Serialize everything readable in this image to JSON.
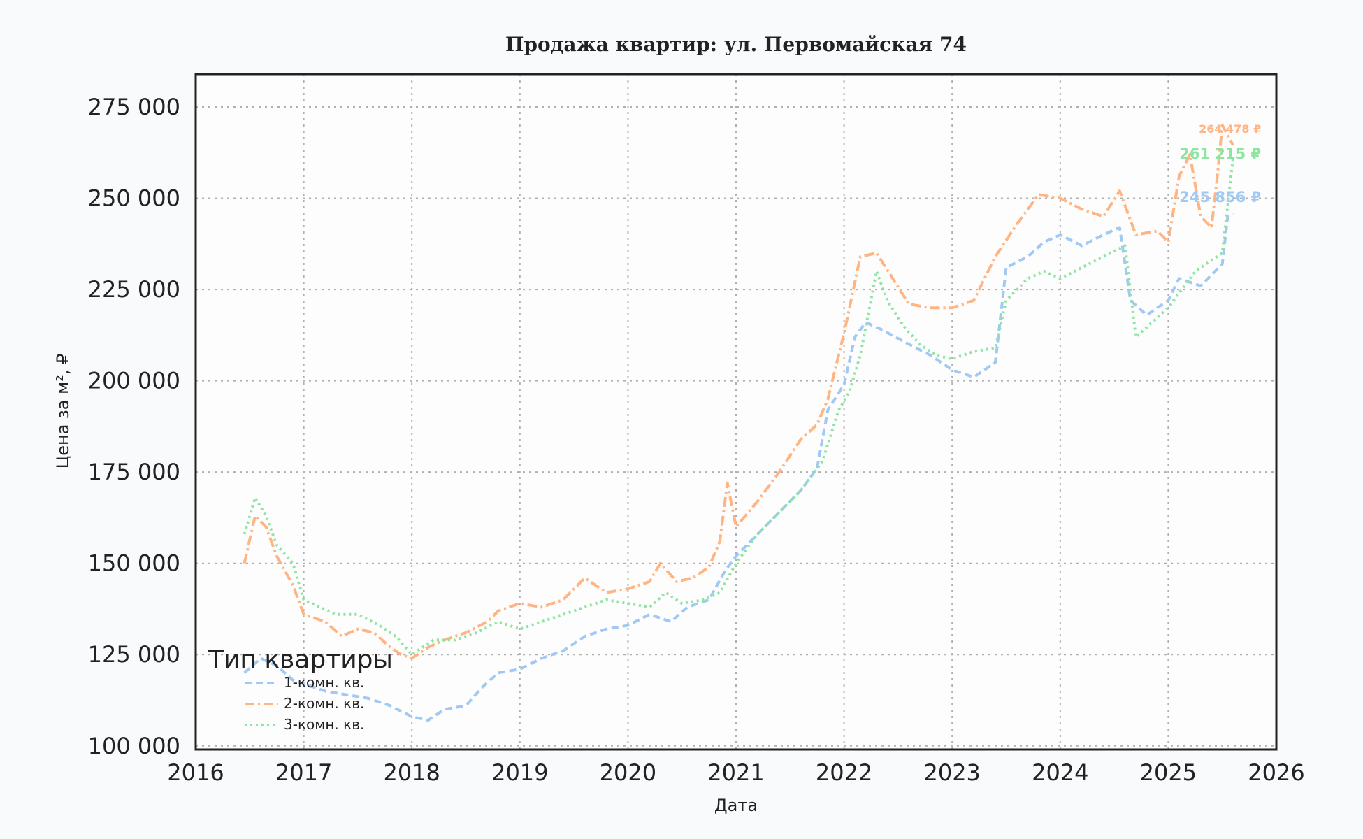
{
  "chart_data": {
    "type": "line",
    "title": "Продажа квартир: ул. Первомайская 74",
    "xlabel": "Дата",
    "ylabel": "Цена за м², ₽",
    "xlim": [
      2016,
      2026
    ],
    "ylim": [
      99000,
      284000
    ],
    "x_ticks": [
      "2016",
      "2017",
      "2018",
      "2019",
      "2020",
      "2021",
      "2022",
      "2023",
      "2024",
      "2025",
      "2026"
    ],
    "y_ticks": [
      100000,
      125000,
      150000,
      175000,
      200000,
      225000,
      250000,
      275000
    ],
    "y_tick_labels": [
      "100 000",
      "125 000",
      "150 000",
      "175 000",
      "200 000",
      "225 000",
      "250 000",
      "275 000"
    ],
    "grid": true,
    "legend": {
      "title": "Тип квартиры",
      "placement": "lower-left"
    },
    "series": [
      {
        "name": "1-комн. кв.",
        "color": "#a1c9f4",
        "dash": "10 6",
        "end_label": "245 856 ₽",
        "x": [
          2016.45,
          2016.6,
          2016.75,
          2016.9,
          2017.0,
          2017.2,
          2017.4,
          2017.6,
          2017.8,
          2018.0,
          2018.15,
          2018.3,
          2018.5,
          2018.65,
          2018.8,
          2019.0,
          2019.2,
          2019.4,
          2019.6,
          2019.8,
          2020.0,
          2020.2,
          2020.4,
          2020.55,
          2020.75,
          2020.9,
          2021.0,
          2021.2,
          2021.4,
          2021.6,
          2021.75,
          2021.85,
          2022.0,
          2022.1,
          2022.2,
          2022.35,
          2022.6,
          2022.8,
          2023.0,
          2023.2,
          2023.4,
          2023.5,
          2023.7,
          2023.85,
          2024.0,
          2024.2,
          2024.4,
          2024.55,
          2024.65,
          2024.8,
          2025.0,
          2025.1,
          2025.3,
          2025.5,
          2025.55,
          2025.6
        ],
        "y": [
          120000,
          124000,
          122000,
          118000,
          117000,
          115000,
          114000,
          113000,
          111000,
          108000,
          107000,
          110000,
          111000,
          116000,
          120000,
          121000,
          124000,
          126000,
          130000,
          132000,
          133000,
          136000,
          134000,
          138000,
          140000,
          148000,
          152000,
          158000,
          164000,
          170000,
          176000,
          192000,
          199000,
          212000,
          216000,
          214000,
          210000,
          207000,
          203000,
          201000,
          205000,
          231000,
          234000,
          238000,
          240000,
          237000,
          240000,
          242000,
          222000,
          218000,
          222000,
          228000,
          226000,
          232000,
          245000,
          245856
        ]
      },
      {
        "name": "2-комн. кв.",
        "color": "#ffb482",
        "dash": "14 5 3 5",
        "end_label": "264 478 ₽",
        "x": [
          2016.45,
          2016.55,
          2016.65,
          2016.75,
          2016.9,
          2017.0,
          2017.2,
          2017.35,
          2017.5,
          2017.65,
          2017.8,
          2017.9,
          2018.0,
          2018.15,
          2018.3,
          2018.5,
          2018.7,
          2018.8,
          2019.0,
          2019.2,
          2019.4,
          2019.6,
          2019.8,
          2020.0,
          2020.2,
          2020.3,
          2020.45,
          2020.6,
          2020.75,
          2020.85,
          2020.92,
          2021.0,
          2021.2,
          2021.4,
          2021.6,
          2021.75,
          2021.85,
          2022.0,
          2022.15,
          2022.3,
          2022.45,
          2022.6,
          2022.8,
          2023.0,
          2023.2,
          2023.4,
          2023.6,
          2023.8,
          2024.0,
          2024.2,
          2024.4,
          2024.55,
          2024.7,
          2024.9,
          2025.0,
          2025.1,
          2025.2,
          2025.3,
          2025.4,
          2025.45,
          2025.5,
          2025.6
        ],
        "y": [
          150000,
          163000,
          160000,
          152000,
          144000,
          136000,
          134000,
          130000,
          132000,
          131000,
          127000,
          125000,
          124000,
          127000,
          129000,
          131000,
          134000,
          137000,
          139000,
          138000,
          140000,
          146000,
          142000,
          143000,
          145000,
          150000,
          145000,
          146000,
          149000,
          156000,
          172000,
          160000,
          167000,
          175000,
          184000,
          188000,
          195000,
          213000,
          234000,
          235000,
          228000,
          221000,
          220000,
          220000,
          222000,
          234000,
          243000,
          251000,
          250000,
          247000,
          245000,
          252000,
          240000,
          241000,
          238000,
          256000,
          262000,
          245000,
          242000,
          255000,
          270000,
          264478
        ]
      },
      {
        "name": "3-комн. кв.",
        "color": "#8de5a1",
        "dash": "3 5",
        "end_label": "261 215 ₽",
        "x": [
          2016.45,
          2016.55,
          2016.65,
          2016.75,
          2016.9,
          2017.0,
          2017.15,
          2017.3,
          2017.5,
          2017.7,
          2017.85,
          2018.0,
          2018.2,
          2018.4,
          2018.6,
          2018.8,
          2019.0,
          2019.2,
          2019.4,
          2019.6,
          2019.8,
          2020.0,
          2020.2,
          2020.35,
          2020.5,
          2020.7,
          2020.85,
          2021.0,
          2021.2,
          2021.4,
          2021.6,
          2021.8,
          2021.95,
          2022.05,
          2022.15,
          2022.3,
          2022.4,
          2022.55,
          2022.7,
          2022.85,
          2023.0,
          2023.2,
          2023.4,
          2023.5,
          2023.7,
          2023.85,
          2024.0,
          2024.2,
          2024.4,
          2024.6,
          2024.7,
          2024.85,
          2025.0,
          2025.15,
          2025.25,
          2025.4,
          2025.5,
          2025.55,
          2025.6
        ],
        "y": [
          158000,
          168000,
          163000,
          155000,
          150000,
          140000,
          138000,
          136000,
          136000,
          133000,
          130000,
          125000,
          129000,
          129000,
          131000,
          134000,
          132000,
          134000,
          136000,
          138000,
          140000,
          139000,
          138000,
          142000,
          139000,
          140000,
          142000,
          150000,
          158000,
          164000,
          170000,
          178000,
          192000,
          197000,
          207000,
          230000,
          222000,
          215000,
          210000,
          207000,
          206000,
          208000,
          209000,
          222000,
          228000,
          230000,
          228000,
          231000,
          234000,
          237000,
          212000,
          216000,
          220000,
          226000,
          230000,
          233000,
          235000,
          248000,
          261215
        ]
      }
    ]
  }
}
